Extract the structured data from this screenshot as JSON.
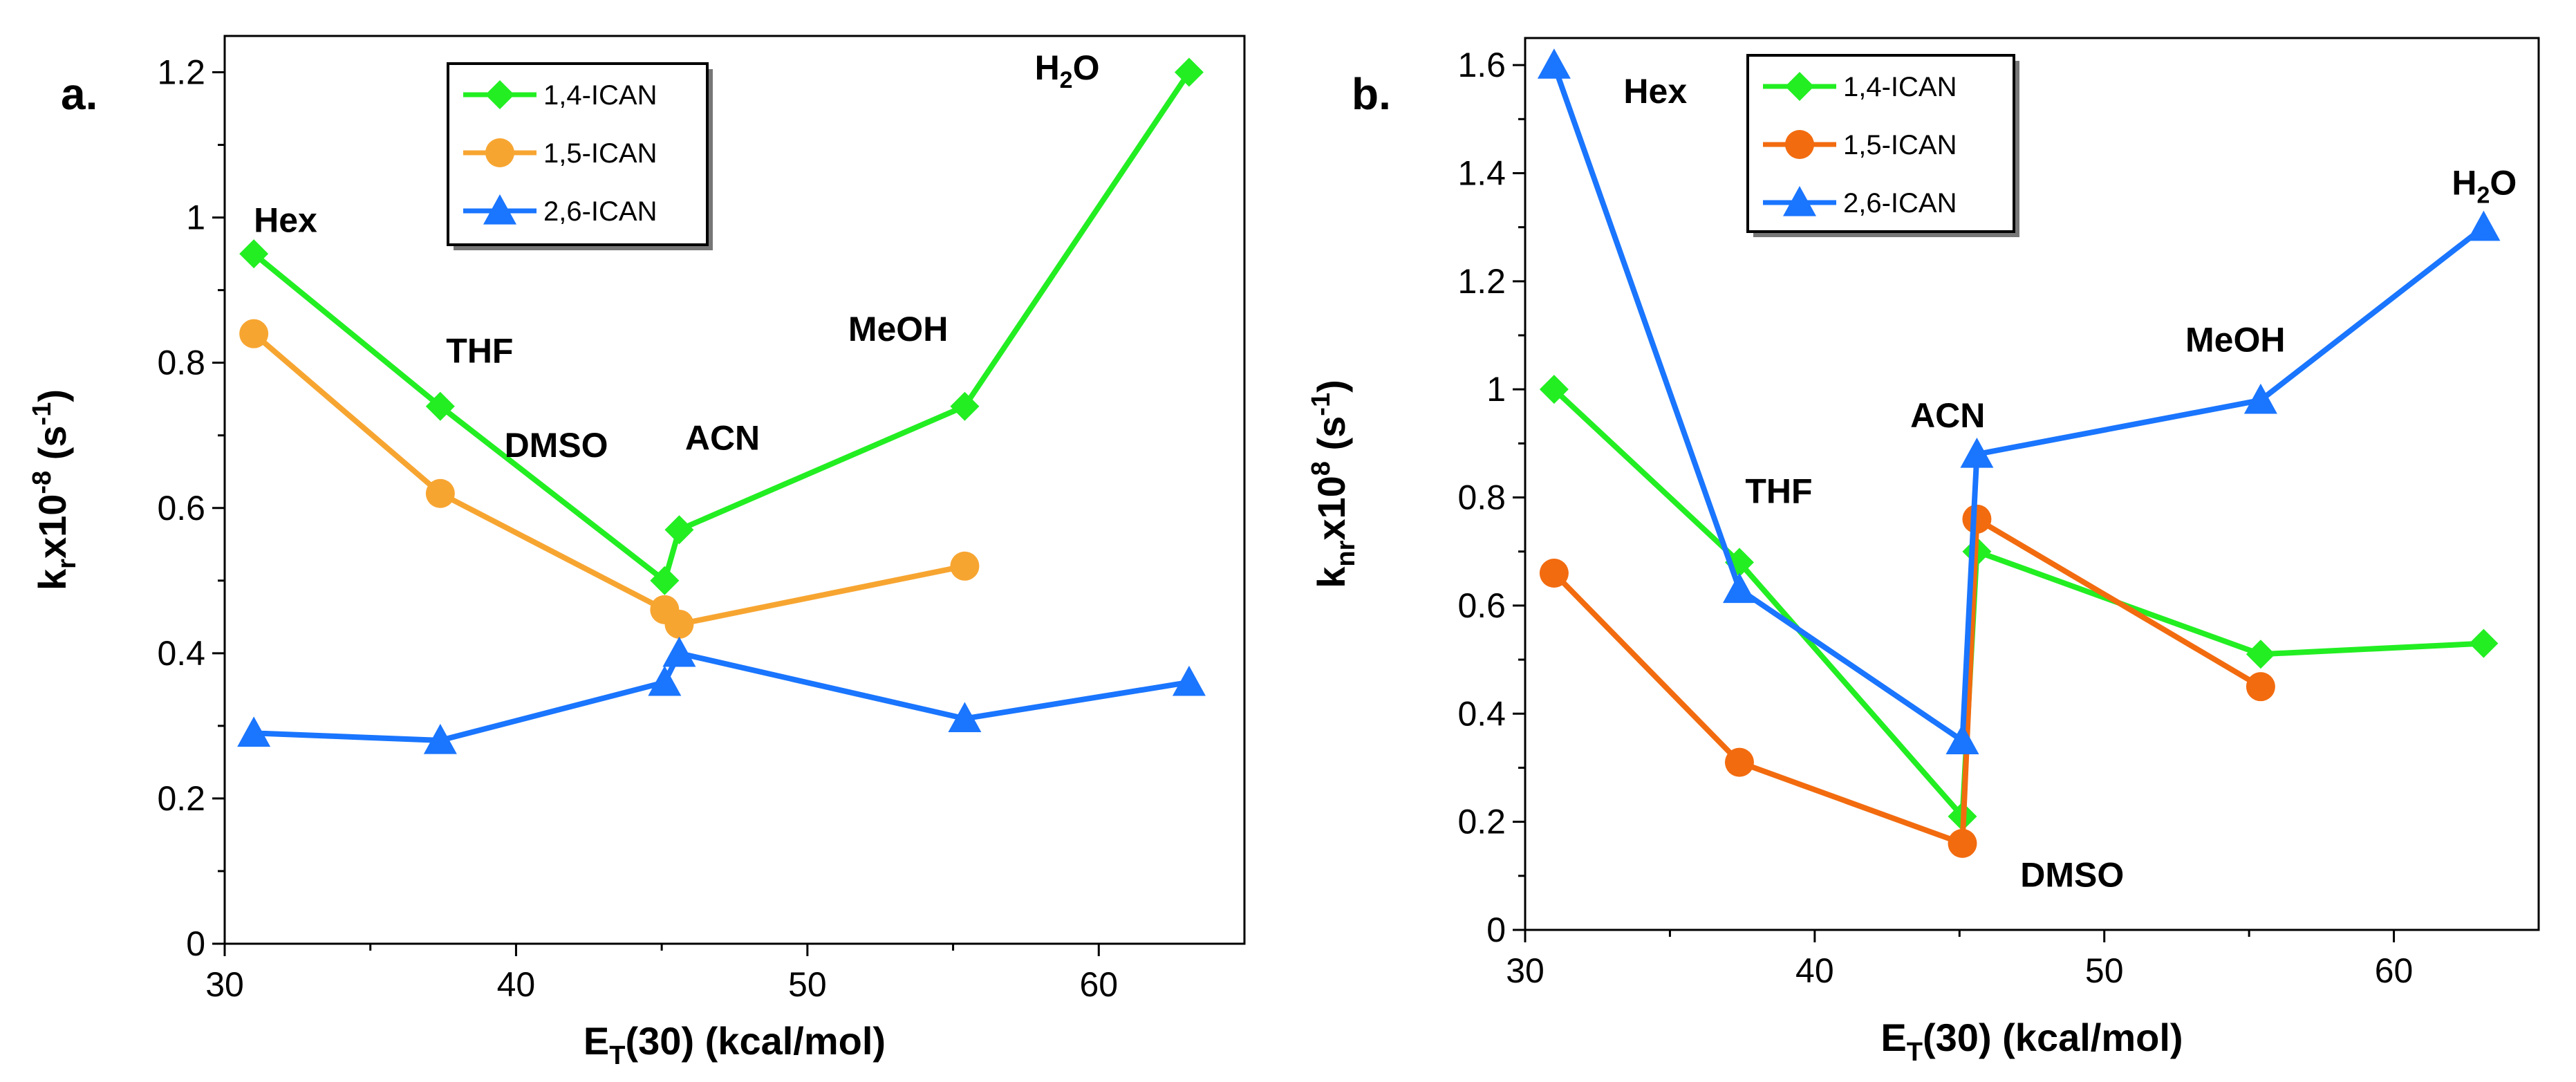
{
  "chart_data": [
    {
      "type": "line",
      "panel_label": "a.",
      "title": "",
      "xlabel": {
        "main": "E",
        "sub": "T",
        "rest": "(30) (kcal/mol)"
      },
      "ylabel": {
        "main": "k",
        "sub": "r",
        "mid": "x10",
        "sup": "-8",
        "rest": " (s",
        "sup2": "-1",
        "end": ")"
      },
      "xlim": [
        30,
        65
      ],
      "ylim": [
        0,
        1.25
      ],
      "xticks": [
        30,
        40,
        50,
        60
      ],
      "xtick_labels": [
        "30",
        "40",
        "50",
        "60"
      ],
      "yticks": [
        0,
        0.2,
        0.4,
        0.6,
        0.8,
        1.0,
        1.2
      ],
      "ytick_labels": [
        "0",
        "0.2",
        "0.4",
        "0.6",
        "0.8",
        "1",
        "1.2"
      ],
      "legend_position": "top-left-center",
      "series": [
        {
          "name": "1,4-ICAN",
          "color": "#22ee22",
          "marker": "diamond",
          "x": [
            31.0,
            37.4,
            45.1,
            45.6,
            55.4,
            63.1
          ],
          "y": [
            0.95,
            0.74,
            0.5,
            0.57,
            0.74,
            1.2
          ]
        },
        {
          "name": "1,5-ICAN",
          "color": "#f7a531",
          "marker": "circle",
          "x": [
            31.0,
            37.4,
            45.1,
            45.6,
            55.4
          ],
          "y": [
            0.84,
            0.62,
            0.46,
            0.44,
            0.52
          ]
        },
        {
          "name": "2,6-ICAN",
          "color": "#1a75ff",
          "marker": "triangle",
          "x": [
            31.0,
            37.4,
            45.1,
            45.6,
            55.4,
            63.1
          ],
          "y": [
            0.29,
            0.28,
            0.36,
            0.4,
            0.31,
            0.36
          ]
        }
      ],
      "annotations": [
        {
          "text": "Hex",
          "x": 31.0,
          "y": 0.98
        },
        {
          "text": "THF",
          "x": 37.6,
          "y": 0.8
        },
        {
          "text": "DMSO",
          "x": 39.6,
          "y": 0.67
        },
        {
          "text": "ACN",
          "x": 45.8,
          "y": 0.68
        },
        {
          "text": "MeOH",
          "x": 51.4,
          "y": 0.83
        },
        {
          "text": "H",
          "sub": "2",
          "rest": "O",
          "x": 57.8,
          "y": 1.19
        }
      ]
    },
    {
      "type": "line",
      "panel_label": "b.",
      "title": "",
      "xlabel": {
        "main": "E",
        "sub": "T",
        "rest": "(30) (kcal/mol)"
      },
      "ylabel": {
        "main": "k",
        "sub": "nr",
        "mid": "x10",
        "sup": "8",
        "rest": " (s",
        "sup2": "-1",
        "end": ")"
      },
      "xlim": [
        30,
        65
      ],
      "ylim": [
        0,
        1.65
      ],
      "xticks": [
        30,
        40,
        50,
        60
      ],
      "xtick_labels": [
        "30",
        "40",
        "50",
        "60"
      ],
      "yticks": [
        0,
        0.2,
        0.4,
        0.6,
        0.8,
        1.0,
        1.2,
        1.4,
        1.6
      ],
      "ytick_labels": [
        "0",
        "0.2",
        "0.4",
        "0.6",
        "0.8",
        "1",
        "1.2",
        "1.4",
        "1.6"
      ],
      "legend_position": "top-left-center",
      "series": [
        {
          "name": "1,4-ICAN",
          "color": "#22ee22",
          "marker": "diamond",
          "x": [
            31.0,
            37.4,
            45.1,
            45.6,
            55.4,
            63.1
          ],
          "y": [
            1.0,
            0.68,
            0.21,
            0.7,
            0.51,
            0.53
          ]
        },
        {
          "name": "1,5-ICAN",
          "color": "#f26b0f",
          "marker": "circle",
          "x": [
            31.0,
            37.4,
            45.1,
            45.6,
            55.4
          ],
          "y": [
            0.66,
            0.31,
            0.16,
            0.76,
            0.45
          ]
        },
        {
          "name": "2,6-ICAN",
          "color": "#1a75ff",
          "marker": "triangle",
          "x": [
            31.0,
            37.4,
            45.1,
            45.6,
            55.4,
            63.1
          ],
          "y": [
            1.6,
            0.63,
            0.35,
            0.88,
            0.98,
            1.3
          ]
        }
      ],
      "annotations": [
        {
          "text": "Hex",
          "x": 33.4,
          "y": 1.53
        },
        {
          "text": "THF",
          "x": 37.6,
          "y": 0.79
        },
        {
          "text": "ACN",
          "x": 43.3,
          "y": 0.93
        },
        {
          "text": "DMSO",
          "x": 47.1,
          "y": 0.08
        },
        {
          "text": "MeOH",
          "x": 52.8,
          "y": 1.07
        },
        {
          "text": "H",
          "sub": "2",
          "rest": "O",
          "x": 62.0,
          "y": 1.36
        }
      ]
    }
  ]
}
